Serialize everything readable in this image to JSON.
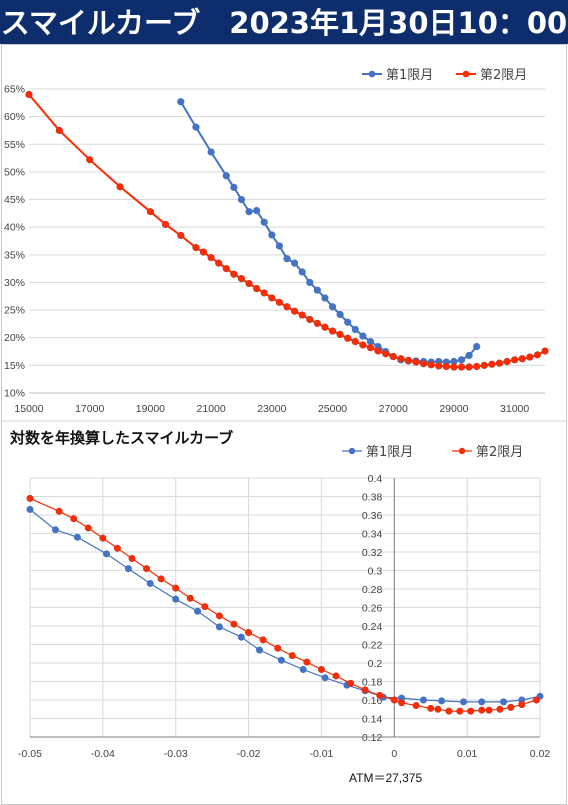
{
  "header": {
    "title": "スマイルカーブ　2023年1月30日10：00"
  },
  "colors": {
    "series1": "#4472c4",
    "series2": "#ff2a00",
    "header_bg": "#0d2d6c",
    "grid": "#d9d9d9"
  },
  "chart_data": [
    {
      "type": "line",
      "title": "",
      "xlim": [
        15000,
        32000
      ],
      "ylim": [
        0.1,
        0.65
      ],
      "x_ticks": [
        15000,
        17000,
        19000,
        21000,
        23000,
        25000,
        27000,
        29000,
        31000
      ],
      "y_ticks": [
        0.1,
        0.15,
        0.2,
        0.25,
        0.3,
        0.35,
        0.4,
        0.45,
        0.5,
        0.55,
        0.6,
        0.65
      ],
      "y_format": "percent",
      "legend_position": "top-right",
      "series": [
        {
          "name": "第1限月",
          "color": "#4472c4",
          "x": [
            20000,
            20500,
            21000,
            21500,
            21750,
            22000,
            22250,
            22500,
            22750,
            23000,
            23250,
            23500,
            23750,
            24000,
            24250,
            24500,
            24750,
            25000,
            25250,
            25500,
            25750,
            26000,
            26250,
            26500,
            26750,
            27000,
            27250,
            27500,
            27750,
            28000,
            28250,
            28500,
            28750,
            29000,
            29250,
            29500,
            29750
          ],
          "y": [
            0.627,
            0.581,
            0.536,
            0.493,
            0.472,
            0.45,
            0.428,
            0.43,
            0.409,
            0.386,
            0.366,
            0.343,
            0.335,
            0.319,
            0.3,
            0.286,
            0.272,
            0.256,
            0.242,
            0.228,
            0.215,
            0.203,
            0.193,
            0.184,
            0.175,
            0.166,
            0.16,
            0.158,
            0.158,
            0.157,
            0.156,
            0.157,
            0.156,
            0.157,
            0.16,
            0.168,
            0.184
          ]
        },
        {
          "name": "第2限月",
          "color": "#ff2a00",
          "x": [
            15000,
            16000,
            17000,
            18000,
            19000,
            19500,
            20000,
            20500,
            20750,
            21000,
            21250,
            21500,
            21750,
            22000,
            22250,
            22500,
            22750,
            23000,
            23250,
            23500,
            23750,
            24000,
            24250,
            24500,
            24750,
            25000,
            25250,
            25500,
            25750,
            26000,
            26250,
            26500,
            26750,
            27000,
            27250,
            27500,
            27750,
            28000,
            28250,
            28500,
            28750,
            29000,
            29250,
            29500,
            29750,
            30000,
            30250,
            30500,
            30750,
            31000,
            31250,
            31500,
            31750,
            32000
          ],
          "y": [
            0.64,
            0.575,
            0.522,
            0.473,
            0.428,
            0.405,
            0.385,
            0.363,
            0.355,
            0.345,
            0.335,
            0.325,
            0.315,
            0.307,
            0.298,
            0.289,
            0.281,
            0.272,
            0.264,
            0.256,
            0.248,
            0.241,
            0.233,
            0.226,
            0.219,
            0.212,
            0.206,
            0.199,
            0.193,
            0.187,
            0.182,
            0.176,
            0.171,
            0.166,
            0.162,
            0.159,
            0.156,
            0.153,
            0.151,
            0.149,
            0.148,
            0.147,
            0.147,
            0.147,
            0.148,
            0.15,
            0.152,
            0.154,
            0.157,
            0.16,
            0.162,
            0.165,
            0.169,
            0.176
          ]
        }
      ]
    },
    {
      "type": "line",
      "title": "対数を年換算したスマイルカーブ",
      "xlim": [
        -0.05,
        0.02
      ],
      "ylim": [
        0.12,
        0.4
      ],
      "x_ticks": [
        -0.05,
        -0.04,
        -0.03,
        -0.02,
        -0.01,
        0,
        0.01,
        0.02
      ],
      "x_tick_labels": [
        "-0.05",
        "-0.04",
        "-0.03",
        "-0.02",
        "-0.01",
        "0",
        "0.01",
        "0.02"
      ],
      "y_ticks": [
        0.12,
        0.14,
        0.16,
        0.18,
        0.2,
        0.22,
        0.24,
        0.26,
        0.28,
        0.3,
        0.32,
        0.34,
        0.36,
        0.38,
        0.4
      ],
      "y_tick_labels": [
        "0.12",
        "0.14",
        "0.16",
        "0.18",
        "0.2",
        "0.22",
        "0.24",
        "0.26",
        "0.28",
        "0.3",
        "0.32",
        "0.34",
        "0.36",
        "0.38",
        "0.4"
      ],
      "legend_position": "top-right",
      "annotation": "ATM＝27,375",
      "series": [
        {
          "name": "第1限月",
          "color": "#4472c4",
          "x": [
            -0.05,
            -0.0465,
            -0.0435,
            -0.0395,
            -0.0365,
            -0.0335,
            -0.03,
            -0.027,
            -0.024,
            -0.021,
            -0.0185,
            -0.0155,
            -0.0125,
            -0.0095,
            -0.0065,
            -0.004,
            -0.0015,
            0.001,
            0.004,
            0.0065,
            0.0095,
            0.012,
            0.015,
            0.0175,
            0.02
          ],
          "y": [
            0.366,
            0.344,
            0.336,
            0.318,
            0.302,
            0.286,
            0.269,
            0.256,
            0.239,
            0.228,
            0.214,
            0.203,
            0.193,
            0.184,
            0.176,
            0.17,
            0.163,
            0.162,
            0.16,
            0.159,
            0.158,
            0.158,
            0.158,
            0.16,
            0.164
          ]
        },
        {
          "name": "第2限月",
          "color": "#ff2a00",
          "x": [
            -0.05,
            -0.046,
            -0.044,
            -0.042,
            -0.04,
            -0.038,
            -0.036,
            -0.034,
            -0.032,
            -0.03,
            -0.028,
            -0.026,
            -0.024,
            -0.022,
            -0.02,
            -0.018,
            -0.016,
            -0.014,
            -0.012,
            -0.01,
            -0.008,
            -0.006,
            -0.004,
            -0.002,
            0.0,
            0.001,
            0.003,
            0.005,
            0.006,
            0.0075,
            0.009,
            0.0105,
            0.012,
            0.013,
            0.0145,
            0.016,
            0.0175,
            0.0195
          ],
          "y": [
            0.378,
            0.364,
            0.356,
            0.346,
            0.335,
            0.324,
            0.313,
            0.302,
            0.291,
            0.281,
            0.27,
            0.261,
            0.251,
            0.242,
            0.233,
            0.225,
            0.216,
            0.208,
            0.201,
            0.193,
            0.186,
            0.178,
            0.171,
            0.165,
            0.16,
            0.157,
            0.154,
            0.151,
            0.15,
            0.148,
            0.148,
            0.148,
            0.149,
            0.149,
            0.15,
            0.152,
            0.155,
            0.16
          ]
        }
      ]
    }
  ]
}
